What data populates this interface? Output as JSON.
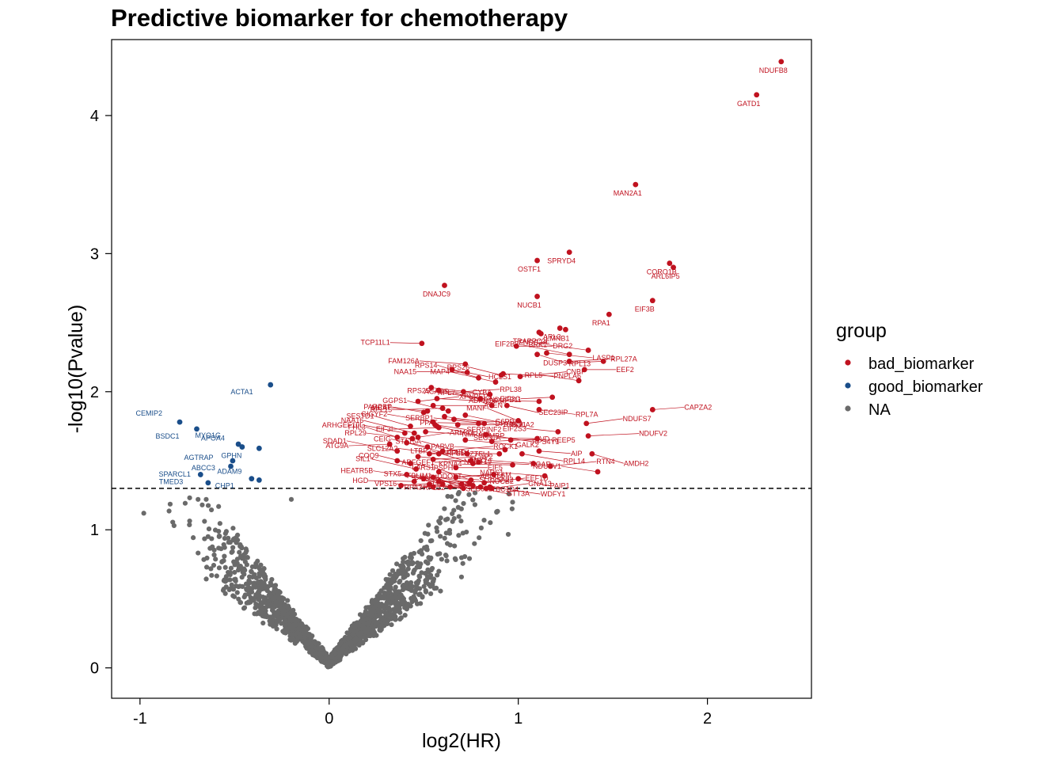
{
  "chart_data": {
    "type": "scatter",
    "title": "Predictive biomarker for chemotherapy",
    "xlabel": "log2(HR)",
    "ylabel": "-log10(Pvalue)",
    "xlim": [
      -1.15,
      2.55
    ],
    "ylim": [
      -0.22,
      4.55
    ],
    "x_ticks": [
      -1,
      0,
      1,
      2
    ],
    "x_tick_labels": [
      "-1",
      "0",
      "1",
      "2"
    ],
    "y_ticks": [
      0,
      1,
      2,
      3,
      4
    ],
    "y_tick_labels": [
      "0",
      "1",
      "2",
      "3",
      "4"
    ],
    "threshold": 1.3,
    "grid": false,
    "legend": {
      "title": "group",
      "position": "right",
      "entries": [
        {
          "label": "bad_biomarker",
          "color": "#C0121F"
        },
        {
          "label": "good_biomarker",
          "color": "#1A4E8A"
        },
        {
          "label": "NA",
          "color": "#6A6A6A"
        }
      ]
    },
    "colors": {
      "bad_biomarker": "#C0121F",
      "good_biomarker": "#1A4E8A",
      "NA": "#6A6A6A"
    },
    "good_biomarker": [
      {
        "x": -0.79,
        "y": 1.78,
        "label": "CEMIP2"
      },
      {
        "x": -0.7,
        "y": 1.73,
        "label": "BSDC1"
      },
      {
        "x": -0.48,
        "y": 1.62,
        "label": "MYO1G"
      },
      {
        "x": -0.37,
        "y": 1.59,
        "label": "GPHN"
      },
      {
        "x": -0.46,
        "y": 1.6,
        "label": "APOA4"
      },
      {
        "x": -0.51,
        "y": 1.5,
        "label": "ABCC3"
      },
      {
        "x": -0.52,
        "y": 1.46,
        "label": "AGTRAP"
      },
      {
        "x": -0.68,
        "y": 1.4,
        "label": "TMED3"
      },
      {
        "x": -0.64,
        "y": 1.34,
        "label": "SPARCL1"
      },
      {
        "x": -0.41,
        "y": 1.37,
        "label": "CHP1"
      },
      {
        "x": -0.37,
        "y": 1.36,
        "label": "ADAM9"
      },
      {
        "x": -0.31,
        "y": 2.05,
        "label": "ACTA1"
      }
    ],
    "bad_biomarker": [
      {
        "x": 2.39,
        "y": 4.39,
        "label": "NDUFB8"
      },
      {
        "x": 2.26,
        "y": 4.15,
        "label": "GATD1"
      },
      {
        "x": 1.62,
        "y": 3.5,
        "label": "MAN2A1"
      },
      {
        "x": 1.27,
        "y": 3.01,
        "label": "SPRYD4"
      },
      {
        "x": 1.1,
        "y": 2.95,
        "label": "OSTF1"
      },
      {
        "x": 1.8,
        "y": 2.93,
        "label": "CORO1B"
      },
      {
        "x": 1.82,
        "y": 2.9,
        "label": "ARL6IP5"
      },
      {
        "x": 0.61,
        "y": 2.77,
        "label": "DNAJC9"
      },
      {
        "x": 1.1,
        "y": 2.69,
        "label": "NUCB1"
      },
      {
        "x": 1.71,
        "y": 2.66,
        "label": "EIF3B"
      },
      {
        "x": 1.48,
        "y": 2.56,
        "label": "RPA1"
      },
      {
        "x": 1.22,
        "y": 2.46,
        "label": "ARL3"
      },
      {
        "x": 1.25,
        "y": 2.45,
        "label": "LMNB1"
      },
      {
        "x": 1.12,
        "y": 2.42,
        "label": "FNDC3A"
      },
      {
        "x": 1.11,
        "y": 2.43,
        "label": "TRAPPC2L"
      },
      {
        "x": 0.49,
        "y": 2.35,
        "label": "TCP11L1"
      },
      {
        "x": 0.99,
        "y": 2.33,
        "label": "DRG2"
      },
      {
        "x": 1.37,
        "y": 2.3,
        "label": "BRK1"
      },
      {
        "x": 1.15,
        "y": 2.28,
        "label": "LASP1"
      },
      {
        "x": 1.27,
        "y": 2.27,
        "label": "EIF2B2"
      },
      {
        "x": 1.1,
        "y": 2.27,
        "label": "RPL13"
      },
      {
        "x": 1.45,
        "y": 2.22,
        "label": "DUSP3"
      },
      {
        "x": 1.27,
        "y": 2.22,
        "label": "RPL27A"
      },
      {
        "x": 0.72,
        "y": 2.2,
        "label": "FAM126A"
      },
      {
        "x": 0.92,
        "y": 2.13,
        "label": "PNPLA6"
      },
      {
        "x": 0.91,
        "y": 2.12,
        "label": "RPS26"
      },
      {
        "x": 0.65,
        "y": 2.16,
        "label": "HCLS1"
      },
      {
        "x": 0.79,
        "y": 2.1,
        "label": "RPS14"
      },
      {
        "x": 1.01,
        "y": 2.11,
        "label": "CNBP"
      },
      {
        "x": 0.73,
        "y": 2.14,
        "label": "NAA15"
      },
      {
        "x": 1.35,
        "y": 2.16,
        "label": "EEF2"
      },
      {
        "x": 1.32,
        "y": 2.08,
        "label": "RPL5"
      },
      {
        "x": 0.54,
        "y": 2.03,
        "label": "CYBA"
      },
      {
        "x": 0.88,
        "y": 2.07,
        "label": "MAP4"
      },
      {
        "x": 0.58,
        "y": 2.01,
        "label": "NDUFB11"
      },
      {
        "x": 1.18,
        "y": 1.96,
        "label": "EIF3G"
      },
      {
        "x": 0.71,
        "y": 2.0,
        "label": "RPL38"
      },
      {
        "x": 0.85,
        "y": 1.98,
        "label": "ACADS"
      },
      {
        "x": 0.57,
        "y": 1.95,
        "label": "NOP10"
      },
      {
        "x": 0.8,
        "y": 1.95,
        "label": "RPS25"
      },
      {
        "x": 0.94,
        "y": 1.9,
        "label": "SEC23IP"
      },
      {
        "x": 0.86,
        "y": 1.9,
        "label": "RPL7"
      },
      {
        "x": 0.47,
        "y": 1.93,
        "label": "XPNPEP3"
      },
      {
        "x": 1.11,
        "y": 1.93,
        "label": "ADPRS"
      },
      {
        "x": 0.55,
        "y": 1.9,
        "label": "AVEN"
      },
      {
        "x": 0.5,
        "y": 1.85,
        "label": "PARPBP"
      },
      {
        "x": 1.11,
        "y": 1.87,
        "label": "RPL7A"
      },
      {
        "x": 0.63,
        "y": 1.86,
        "label": "GGPS1"
      },
      {
        "x": 0.72,
        "y": 1.83,
        "label": "BOLA2"
      },
      {
        "x": 0.6,
        "y": 1.88,
        "label": "RPL15"
      },
      {
        "x": 1.71,
        "y": 1.87,
        "label": "CAPZA2"
      },
      {
        "x": 0.52,
        "y": 1.86,
        "label": "MCAT"
      },
      {
        "x": 0.66,
        "y": 1.8,
        "label": "G6PD"
      },
      {
        "x": 0.55,
        "y": 1.78,
        "label": "GIGYF2"
      },
      {
        "x": 0.61,
        "y": 1.82,
        "label": "DPYSL4"
      },
      {
        "x": 1.0,
        "y": 1.79,
        "label": "MANF"
      },
      {
        "x": 1.36,
        "y": 1.77,
        "label": "NDUFS7"
      },
      {
        "x": 0.79,
        "y": 1.77,
        "label": "PPAT"
      },
      {
        "x": 0.68,
        "y": 1.76,
        "label": "RPS21"
      },
      {
        "x": 0.82,
        "y": 1.77,
        "label": "SERBP1"
      },
      {
        "x": 0.56,
        "y": 1.76,
        "label": "SERPINF2"
      },
      {
        "x": 0.43,
        "y": 1.75,
        "label": "SESTD1"
      },
      {
        "x": 0.57,
        "y": 1.75,
        "label": "MCMBP"
      },
      {
        "x": 0.58,
        "y": 1.74,
        "label": "EIF3I"
      },
      {
        "x": 1.37,
        "y": 1.68,
        "label": "NDUFV2"
      },
      {
        "x": 1.21,
        "y": 1.71,
        "label": "EIF2S3"
      },
      {
        "x": 0.51,
        "y": 1.71,
        "label": "NMRAL1"
      },
      {
        "x": 0.4,
        "y": 1.7,
        "label": "ARHGEF10L"
      },
      {
        "x": 0.83,
        "y": 1.69,
        "label": "RPS4Y1"
      },
      {
        "x": 0.45,
        "y": 1.7,
        "label": "NAA16"
      },
      {
        "x": 0.47,
        "y": 1.67,
        "label": "ARMC1"
      },
      {
        "x": 1.1,
        "y": 1.66,
        "label": "SEC31A"
      },
      {
        "x": 0.96,
        "y": 1.65,
        "label": "REEP5"
      },
      {
        "x": 0.44,
        "y": 1.66,
        "label": "RPL29"
      },
      {
        "x": 0.72,
        "y": 1.65,
        "label": "GALK2"
      },
      {
        "x": 0.36,
        "y": 1.67,
        "label": "FHL3"
      },
      {
        "x": 0.41,
        "y": 1.63,
        "label": "MT-ND4"
      },
      {
        "x": 0.32,
        "y": 1.62,
        "label": "ATG9A"
      },
      {
        "x": 0.86,
        "y": 1.64,
        "label": "IVD"
      },
      {
        "x": 0.93,
        "y": 1.58,
        "label": "PARVB"
      },
      {
        "x": 1.11,
        "y": 1.57,
        "label": "AIP"
      },
      {
        "x": 0.52,
        "y": 1.6,
        "label": "CEIG"
      },
      {
        "x": 1.02,
        "y": 1.55,
        "label": "RPL14"
      },
      {
        "x": 0.73,
        "y": 1.55,
        "label": "STAT5A"
      },
      {
        "x": 0.6,
        "y": 1.57,
        "label": "ROCK1"
      },
      {
        "x": 0.9,
        "y": 1.55,
        "label": "RPL11"
      },
      {
        "x": 0.53,
        "y": 1.55,
        "label": "LZTFL1"
      },
      {
        "x": 0.58,
        "y": 1.55,
        "label": "SLC12A2"
      },
      {
        "x": 0.47,
        "y": 1.53,
        "label": "NUDT19"
      },
      {
        "x": 0.36,
        "y": 1.57,
        "label": "SDAD1"
      },
      {
        "x": 1.39,
        "y": 1.55,
        "label": "AMDH2"
      },
      {
        "x": 0.75,
        "y": 1.5,
        "label": "ARFGEF1"
      },
      {
        "x": 0.55,
        "y": 1.51,
        "label": "CAP2"
      },
      {
        "x": 1.08,
        "y": 1.48,
        "label": "SNX2"
      },
      {
        "x": 0.79,
        "y": 1.49,
        "label": "TIGAR"
      },
      {
        "x": 0.43,
        "y": 1.48,
        "label": "COQ9"
      },
      {
        "x": 0.36,
        "y": 1.5,
        "label": "PSPH"
      },
      {
        "x": 0.76,
        "y": 1.48,
        "label": "LTBP2"
      },
      {
        "x": 1.17,
        "y": 1.46,
        "label": "RTN4"
      },
      {
        "x": 0.97,
        "y": 1.47,
        "label": "KPNA4"
      },
      {
        "x": 0.67,
        "y": 1.45,
        "label": "EIF5"
      },
      {
        "x": 1.42,
        "y": 1.42,
        "label": "NDUFV1"
      },
      {
        "x": 0.58,
        "y": 1.42,
        "label": "ABCC4"
      },
      {
        "x": 0.46,
        "y": 1.44,
        "label": "SIL1"
      },
      {
        "x": 0.41,
        "y": 1.4,
        "label": "FN3K"
      },
      {
        "x": 0.87,
        "y": 1.4,
        "label": "DDOST"
      },
      {
        "x": 0.67,
        "y": 1.38,
        "label": "TFAM"
      },
      {
        "x": 1.14,
        "y": 1.39,
        "label": "NARS1"
      },
      {
        "x": 0.55,
        "y": 1.38,
        "label": "SLC25A22"
      },
      {
        "x": 0.5,
        "y": 1.37,
        "label": "HEATR5B"
      },
      {
        "x": 1.0,
        "y": 1.37,
        "label": "PAIP1"
      },
      {
        "x": 0.75,
        "y": 1.36,
        "label": "LARS1"
      },
      {
        "x": 0.82,
        "y": 1.34,
        "label": "EEF1D"
      },
      {
        "x": 0.45,
        "y": 1.35,
        "label": "HGD"
      },
      {
        "x": 0.58,
        "y": 1.35,
        "label": "NUCB2"
      },
      {
        "x": 0.74,
        "y": 1.34,
        "label": "CKAP4"
      },
      {
        "x": 0.53,
        "y": 1.33,
        "label": "SEC61B"
      },
      {
        "x": 0.6,
        "y": 1.33,
        "label": "STX5"
      },
      {
        "x": 0.7,
        "y": 1.33,
        "label": "STT3A"
      },
      {
        "x": 0.76,
        "y": 1.32,
        "label": "RPA3"
      },
      {
        "x": 0.38,
        "y": 1.32,
        "label": "GNL3"
      },
      {
        "x": 0.55,
        "y": 1.31,
        "label": "VPS16"
      },
      {
        "x": 0.64,
        "y": 1.31,
        "label": "TBC1D4"
      },
      {
        "x": 0.8,
        "y": 1.31,
        "label": "LSS"
      },
      {
        "x": 0.85,
        "y": 1.31,
        "label": "WDFY1"
      },
      {
        "x": 0.71,
        "y": 1.3,
        "label": "FBLIM1"
      },
      {
        "x": 0.86,
        "y": 1.3,
        "label": "GNA13"
      },
      {
        "x": 0.83,
        "y": 1.3,
        "label": "RPL22"
      }
    ]
  }
}
